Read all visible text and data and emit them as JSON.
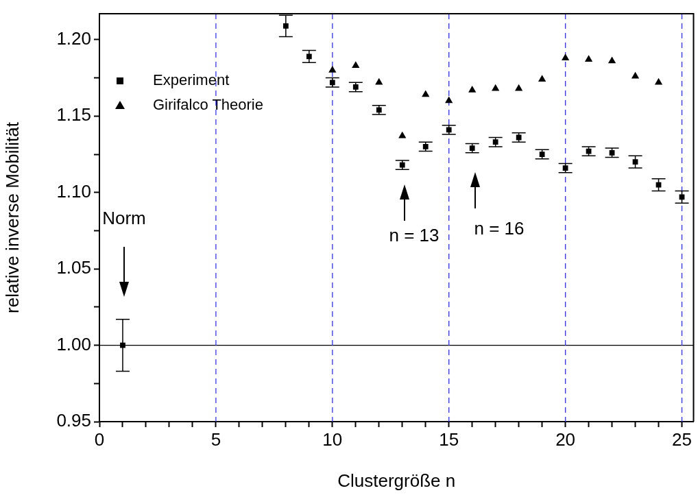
{
  "chart_data": {
    "type": "scatter",
    "xlabel": "Clustergröße n",
    "ylabel": "relative inverse Mobilität",
    "xlim": [
      0,
      25.5
    ],
    "ylim": [
      0.95,
      1.217
    ],
    "xticks": [
      0,
      {
        "value": 1,
        "label": null
      },
      {
        "value": 2,
        "label": null
      },
      {
        "value": 3,
        "label": null
      },
      {
        "value": 4,
        "label": null
      },
      5,
      {
        "value": 6,
        "label": null
      },
      {
        "value": 7,
        "label": null
      },
      {
        "value": 8,
        "label": null
      },
      {
        "value": 9,
        "label": null
      },
      10,
      {
        "value": 11,
        "label": null
      },
      {
        "value": 12,
        "label": null
      },
      {
        "value": 13,
        "label": null
      },
      {
        "value": 14,
        "label": null
      },
      15,
      {
        "value": 16,
        "label": null
      },
      {
        "value": 17,
        "label": null
      },
      {
        "value": 18,
        "label": null
      },
      {
        "value": 19,
        "label": null
      },
      20,
      {
        "value": 21,
        "label": null
      },
      {
        "value": 22,
        "label": null
      },
      {
        "value": 23,
        "label": null
      },
      {
        "value": 24,
        "label": null
      },
      25
    ],
    "yticks": [
      {
        "value": 0.95,
        "label": "0.95"
      },
      {
        "value": 0.975,
        "label": null
      },
      {
        "value": 1.0,
        "label": "1.00"
      },
      {
        "value": 1.025,
        "label": null
      },
      {
        "value": 1.05,
        "label": "1.05"
      },
      {
        "value": 1.075,
        "label": null
      },
      {
        "value": 1.1,
        "label": "1.10"
      },
      {
        "value": 1.125,
        "label": null
      },
      {
        "value": 1.15,
        "label": "1.15"
      },
      {
        "value": 1.175,
        "label": null
      },
      {
        "value": 1.2,
        "label": "1.20"
      }
    ],
    "legend": "top left",
    "series": [
      {
        "name": "Experiment",
        "color": "#000000",
        "marker": "square",
        "x": [
          1,
          8,
          9,
          10,
          11,
          12,
          13,
          14,
          15,
          16,
          17,
          18,
          19,
          20,
          21,
          22,
          23,
          24,
          25
        ],
        "values": [
          1.0,
          1.209,
          1.189,
          1.172,
          1.169,
          1.154,
          1.118,
          1.13,
          1.141,
          1.129,
          1.133,
          1.136,
          1.125,
          1.116,
          1.127,
          1.126,
          1.12,
          1.105,
          1.097
        ],
        "errors": [
          0.017,
          0.007,
          0.004,
          0.003,
          0.003,
          0.003,
          0.003,
          0.003,
          0.003,
          0.003,
          0.003,
          0.003,
          0.003,
          0.003,
          0.003,
          0.003,
          0.004,
          0.004,
          0.004
        ]
      },
      {
        "name": "Girifalco Theorie",
        "color": "#000000",
        "marker": "triangle",
        "x": [
          10,
          11,
          12,
          13,
          14,
          15,
          16,
          17,
          18,
          19,
          20,
          21,
          22,
          23,
          24
        ],
        "values": [
          1.18,
          1.183,
          1.172,
          1.137,
          1.164,
          1.16,
          1.167,
          1.168,
          1.168,
          1.174,
          1.188,
          1.187,
          1.186,
          1.176,
          1.172
        ]
      }
    ],
    "ref_lines": [
      {
        "axis": "y",
        "value": 1.0,
        "color": "#000000",
        "line_style": "solid"
      },
      {
        "axis": "x",
        "value": 5,
        "color": "#3333ff",
        "line_style": "dashed"
      },
      {
        "axis": "x",
        "value": 10,
        "color": "#3333ff",
        "line_style": "dashed"
      },
      {
        "axis": "x",
        "value": 15,
        "color": "#3333ff",
        "line_style": "dashed"
      },
      {
        "axis": "x",
        "value": 20,
        "color": "#3333ff",
        "line_style": "dashed"
      },
      {
        "axis": "x",
        "value": 25,
        "color": "#3333ff",
        "line_style": "dashed"
      }
    ],
    "annotations": [
      "Norm",
      "n = 13",
      "n = 16"
    ]
  }
}
